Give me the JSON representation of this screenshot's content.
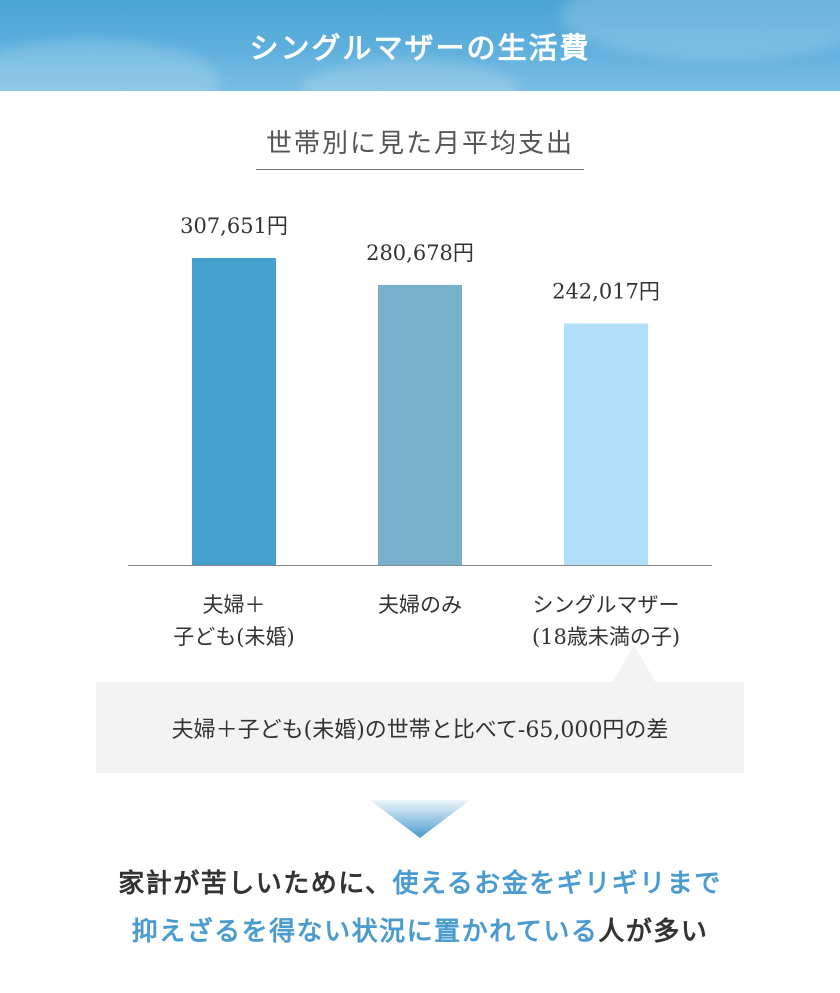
{
  "header": {
    "title": "シングルマザーの生活費"
  },
  "subtitle": "世帯別に見た月平均支出",
  "chart_data": {
    "type": "bar",
    "categories": [
      "夫婦＋子ども(未婚)",
      "夫婦のみ",
      "シングルマザー(18歳未満の子)"
    ],
    "category_lines": [
      [
        "夫婦＋",
        "子ども(未婚)"
      ],
      [
        "夫婦のみ"
      ],
      [
        "シングルマザー",
        "(18歳未満の子)"
      ]
    ],
    "values": [
      307651,
      280678,
      242017
    ],
    "value_labels": [
      "307,651円",
      "280,678円",
      "242,017円"
    ],
    "colors": [
      "#45a0cd",
      "#79b1cc",
      "#b1dff7"
    ],
    "ylim": [
      0,
      307651
    ],
    "grid": false,
    "legend": "none"
  },
  "note": {
    "text": "夫婦＋子ども(未婚)の世帯と比べて-65,000円の差"
  },
  "conclusion": {
    "line1_a": "家計が苦しいために、",
    "line1_b": "使えるお金をギリギリまで",
    "line2_a": "抑えざるを得ない状況に置かれている",
    "line2_b": "人が多い"
  },
  "colors": {
    "accent": "#4a9bcf",
    "header": "#4aa3d3"
  }
}
